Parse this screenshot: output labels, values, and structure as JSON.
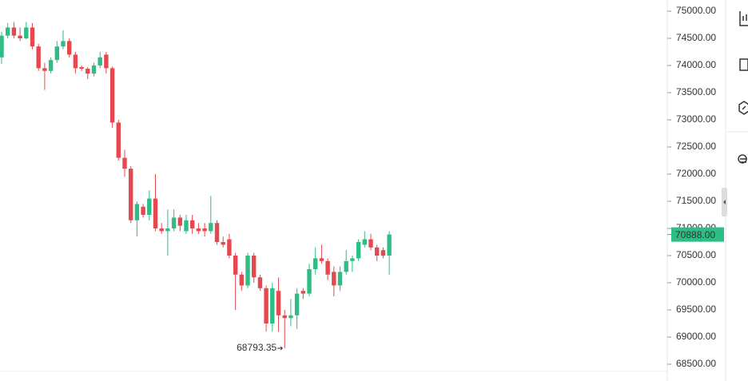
{
  "chart_data": {
    "type": "candlestick",
    "up_color": "#2ebd85",
    "down_color": "#e5484f",
    "open": [
      74150,
      74550,
      74700,
      74550,
      74500,
      74700,
      74350,
      73950,
      73900,
      74100,
      74350,
      74450,
      74200,
      73970,
      73940,
      73850,
      74000,
      74200,
      73950,
      72950,
      72300,
      72100,
      71150,
      71400,
      71250,
      71550,
      71000,
      70950,
      71000,
      71200,
      70950,
      71150,
      71000,
      71000,
      70950,
      71100,
      70750,
      70800,
      70500,
      70150,
      69950,
      70500,
      70100,
      69900,
      69250,
      69850,
      69400,
      69350,
      69400,
      69850,
      69800,
      70250,
      70450,
      70400,
      70200,
      69950,
      70200,
      70400,
      70450,
      70700,
      70800,
      70650,
      70600,
      70500
    ],
    "high": [
      74620,
      74780,
      74800,
      74700,
      74800,
      74780,
      74400,
      74050,
      74150,
      74450,
      74650,
      74500,
      74250,
      74000,
      73970,
      74050,
      74250,
      74250,
      73980,
      73000,
      72450,
      72150,
      71500,
      71450,
      71700,
      72000,
      71100,
      71350,
      71350,
      71250,
      71250,
      71250,
      71100,
      71100,
      71600,
      71150,
      70850,
      70900,
      70550,
      70200,
      70550,
      70550,
      70150,
      69950,
      70000,
      70100,
      69500,
      69700,
      69900,
      69900,
      70350,
      70650,
      70700,
      70450,
      70300,
      70300,
      70600,
      70500,
      70800,
      70950,
      70900,
      70700,
      70650,
      70950
    ],
    "low": [
      74030,
      74500,
      74500,
      74450,
      74480,
      74300,
      73900,
      73550,
      73850,
      74050,
      74300,
      74150,
      73850,
      73900,
      73750,
      73800,
      73950,
      73850,
      72850,
      72250,
      71950,
      71100,
      70850,
      71200,
      71150,
      70950,
      70900,
      70500,
      70950,
      70950,
      70900,
      70900,
      70900,
      70850,
      70900,
      70700,
      70650,
      70450,
      69500,
      69850,
      69900,
      70000,
      69850,
      69100,
      69100,
      69100,
      68793.35,
      69200,
      69150,
      69700,
      69750,
      70150,
      70350,
      70050,
      69750,
      69850,
      70150,
      70200,
      70400,
      70650,
      70600,
      70400,
      70450,
      70150
    ],
    "close": [
      74550,
      74700,
      74550,
      74500,
      74700,
      74350,
      73950,
      73900,
      74100,
      74350,
      74450,
      74200,
      73950,
      73940,
      73850,
      74000,
      74150,
      73950,
      72950,
      72300,
      72100,
      71150,
      71450,
      71250,
      71550,
      71000,
      70950,
      71000,
      71200,
      71050,
      71150,
      71000,
      70950,
      70950,
      71100,
      70750,
      70700,
      70500,
      70150,
      69950,
      70500,
      70100,
      69900,
      69250,
      69900,
      69400,
      69350,
      69400,
      69800,
      69800,
      70250,
      70450,
      70400,
      70150,
      69950,
      70200,
      70400,
      70450,
      70750,
      70800,
      70650,
      70500,
      70500,
      70888
    ],
    "ylim": [
      68300,
      75200
    ],
    "yticks": [
      {
        "value": 68500,
        "label": "68500.00"
      },
      {
        "value": 69000,
        "label": "69000.00"
      },
      {
        "value": 69500,
        "label": "69500.00"
      },
      {
        "value": 70000,
        "label": "70000.00"
      },
      {
        "value": 70500,
        "label": "70500.00"
      },
      {
        "value": 71000,
        "label": "71000.00"
      },
      {
        "value": 71500,
        "label": "71500.00"
      },
      {
        "value": 72000,
        "label": "72000.00"
      },
      {
        "value": 72500,
        "label": "72500.00"
      },
      {
        "value": 73000,
        "label": "73000.00"
      },
      {
        "value": 73500,
        "label": "73500.00"
      },
      {
        "value": 74000,
        "label": "74000.00"
      },
      {
        "value": 74500,
        "label": "74500.00"
      },
      {
        "value": 75000,
        "label": "75000.00"
      }
    ],
    "last_price": {
      "value": 70888,
      "label": "70888.00"
    },
    "low_marker": 68793.35
  }
}
